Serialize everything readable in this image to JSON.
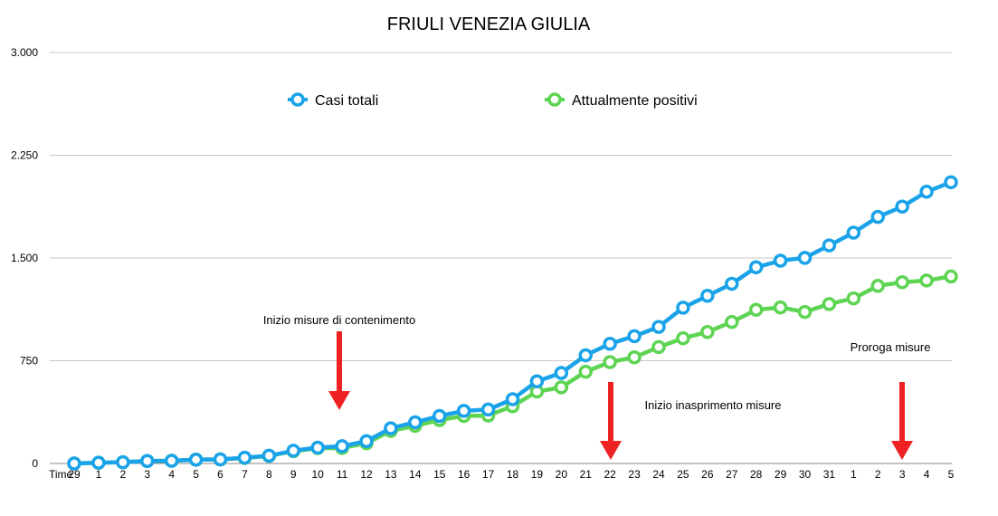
{
  "chart_data": {
    "type": "line",
    "title": "FRIULI VENEZIA GIULIA",
    "xlabel": "Time",
    "ylabel": "",
    "categories": [
      "29",
      "1",
      "2",
      "3",
      "4",
      "5",
      "6",
      "7",
      "8",
      "9",
      "10",
      "11",
      "12",
      "13",
      "14",
      "15",
      "16",
      "17",
      "18",
      "19",
      "20",
      "21",
      "22",
      "23",
      "24",
      "25",
      "26",
      "27",
      "28",
      "29",
      "30",
      "31",
      "1",
      "2",
      "3",
      "4",
      "5"
    ],
    "ylim": [
      0,
      3000
    ],
    "yticks": [
      0,
      750,
      1500,
      2250,
      3000
    ],
    "ytick_labels": [
      "0",
      "750",
      "1.500",
      "2.250",
      "3.000"
    ],
    "grid": true,
    "legend_position": "top-center",
    "series": [
      {
        "name": "Casi totali",
        "color": "#1aa3e8",
        "values": [
          0,
          6,
          9,
          18,
          20,
          28,
          30,
          42,
          57,
          93,
          116,
          126,
          163,
          257,
          301,
          347,
          384,
          394,
          469,
          600,
          661,
          790,
          874,
          929,
          997,
          1137,
          1224,
          1312,
          1432,
          1480,
          1501,
          1592,
          1685,
          1800,
          1875,
          1984,
          2053
        ]
      },
      {
        "name": "Attualmente positivi",
        "color": "#5ed453",
        "values": [
          0,
          6,
          9,
          18,
          20,
          28,
          30,
          40,
          55,
          90,
          112,
          113,
          148,
          238,
          275,
          317,
          347,
          350,
          418,
          525,
          556,
          670,
          740,
          775,
          850,
          914,
          960,
          1033,
          1122,
          1139,
          1106,
          1164,
          1205,
          1297,
          1323,
          1336,
          1365
        ]
      }
    ],
    "annotations": [
      {
        "text": "Inizio misure di contenimento",
        "arrow_at": "11"
      },
      {
        "text": "Inizio inasprimento misure",
        "arrow_at": "22"
      },
      {
        "text": "Proroga misure",
        "arrow_at": "3"
      }
    ],
    "arrow_color": "#ee2222"
  }
}
